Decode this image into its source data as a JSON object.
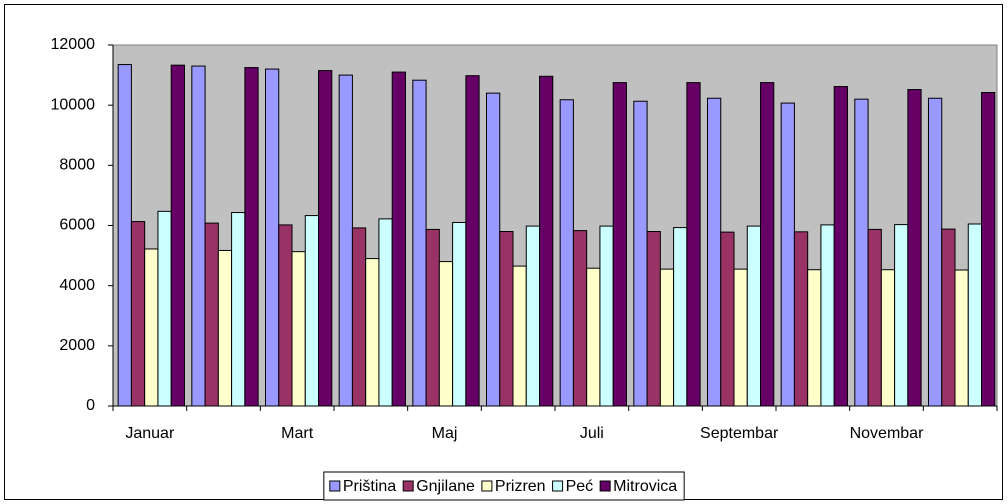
{
  "chart_data": {
    "type": "bar",
    "categories": [
      "Januar",
      null,
      "Mart",
      null,
      "Maj",
      null,
      "Juli",
      null,
      "Septembar",
      null,
      "Novembar",
      null
    ],
    "series": [
      {
        "name": "Priština",
        "color": "#9999ff",
        "values": [
          11350,
          11300,
          11200,
          11000,
          10830,
          10400,
          10180,
          10130,
          10230,
          10070,
          10200,
          10230
        ]
      },
      {
        "name": "Gnjilane",
        "color": "#993366",
        "values": [
          6130,
          6080,
          6020,
          5920,
          5870,
          5800,
          5830,
          5800,
          5780,
          5790,
          5870,
          5880
        ]
      },
      {
        "name": "Prizren",
        "color": "#ffffcc",
        "values": [
          5220,
          5170,
          5130,
          4900,
          4800,
          4650,
          4580,
          4550,
          4550,
          4530,
          4530,
          4520
        ]
      },
      {
        "name": "Peć",
        "color": "#ccffff",
        "values": [
          6470,
          6430,
          6330,
          6220,
          6100,
          5980,
          5980,
          5930,
          5980,
          6020,
          6030,
          6050
        ]
      },
      {
        "name": "Mitrovica",
        "color": "#660066",
        "values": [
          11330,
          11250,
          11150,
          11100,
          10980,
          10960,
          10750,
          10750,
          10750,
          10620,
          10520,
          10420
        ]
      }
    ],
    "ylim": [
      0,
      12000
    ],
    "yticks": [
      0,
      2000,
      4000,
      6000,
      8000,
      10000,
      12000
    ],
    "grid": false,
    "legend": "bottom",
    "plot_background": "#c0c0c0"
  }
}
